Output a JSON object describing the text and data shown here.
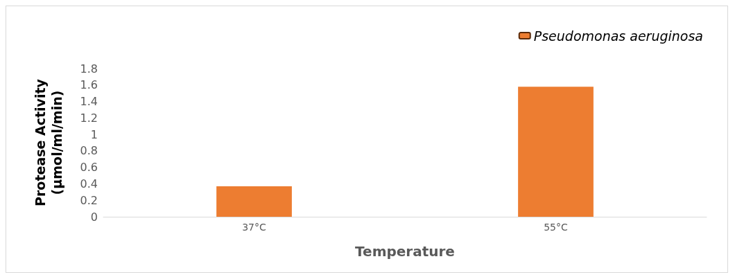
{
  "chart_data": {
    "type": "bar",
    "xlabel": "Temperature",
    "ylabel": "Protease Activity (µmol/ml/min)",
    "categories": [
      "37°C",
      "55°C"
    ],
    "series": [
      {
        "name": "Pseudomonas aeruginosa",
        "color": "#ed7d31",
        "values": [
          0.37,
          1.58
        ]
      }
    ],
    "ylim": [
      0,
      1.8
    ],
    "yticks": [
      0,
      0.2,
      0.4,
      0.6,
      0.8,
      1,
      1.2,
      1.4,
      1.6,
      1.8
    ],
    "grid": false,
    "legend": "top right"
  }
}
